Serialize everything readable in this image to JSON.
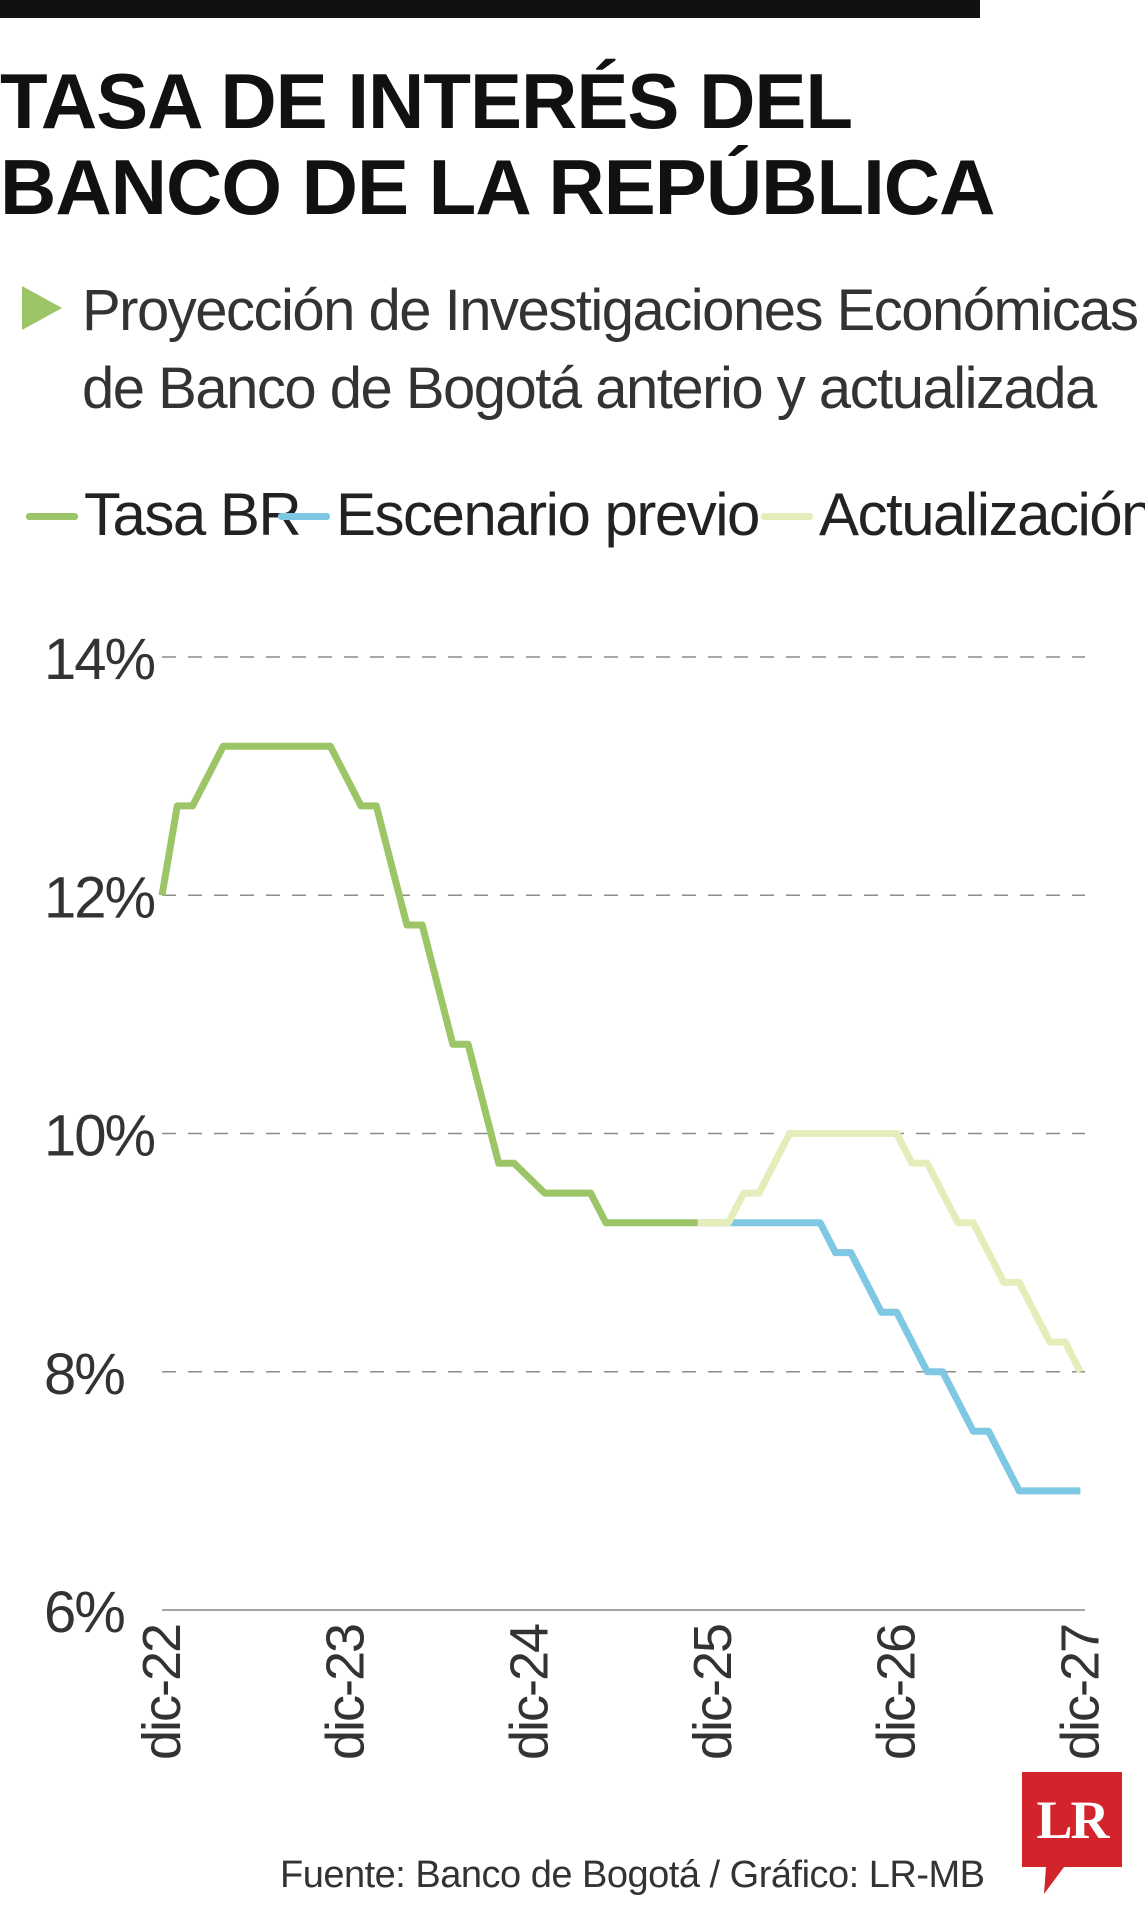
{
  "header": {
    "title_line1": "TASA DE INTERÉS DEL",
    "title_line2": "BANCO DE LA REPÚBLICA",
    "subtitle_line1": "Proyección de Investigaciones Económicas",
    "subtitle_line2": "de Banco de Bogotá anterio y actualizada"
  },
  "legend": [
    {
      "label": "Tasa BR",
      "color": "#9bc567"
    },
    {
      "label": "Escenario previo",
      "color": "#7ec8e3"
    },
    {
      "label": "Actualización",
      "color": "#e6edbb"
    }
  ],
  "chart_data": {
    "type": "line",
    "title": "TASA DE INTERÉS DEL BANCO DE LA REPÚBLICA",
    "subtitle": "Proyección de Investigaciones Económicas de Banco de Bogotá anterio y actualizada",
    "xlabel": "",
    "ylabel": "",
    "ylim": [
      6,
      14
    ],
    "yticks": [
      "6%",
      "8%",
      "10%",
      "12%",
      "14%"
    ],
    "ytick_values": [
      6,
      8,
      10,
      12,
      14
    ],
    "xlim": [
      0,
      60.3
    ],
    "xticks": [
      "dic-22",
      "dic-23",
      "dic-24",
      "dic-25",
      "dic-26",
      "dic-27"
    ],
    "xtick_values": [
      0,
      12,
      24,
      36,
      48,
      60
    ],
    "grid": "horizontal-dashed",
    "legend_position": "top",
    "series": [
      {
        "name": "Tasa BR",
        "color": "#9bc567",
        "points": [
          [
            0,
            12.0
          ],
          [
            1,
            12.75
          ],
          [
            2,
            12.75
          ],
          [
            4,
            13.25
          ],
          [
            5,
            13.25
          ],
          [
            6,
            13.25
          ],
          [
            7,
            13.25
          ],
          [
            8,
            13.25
          ],
          [
            9,
            13.25
          ],
          [
            10,
            13.25
          ],
          [
            11,
            13.25
          ],
          [
            13,
            12.75
          ],
          [
            14,
            12.75
          ],
          [
            16,
            11.75
          ],
          [
            17,
            11.75
          ],
          [
            19,
            10.75
          ],
          [
            20,
            10.75
          ],
          [
            22,
            9.75
          ],
          [
            23,
            9.75
          ],
          [
            25,
            9.5
          ],
          [
            28,
            9.5
          ],
          [
            29,
            9.25
          ],
          [
            35,
            9.25
          ]
        ]
      },
      {
        "name": "Escenario previo",
        "color": "#7ec8e3",
        "points": [
          [
            35,
            9.25
          ],
          [
            43,
            9.25
          ],
          [
            44,
            9.0
          ],
          [
            45,
            9.0
          ],
          [
            47,
            8.5
          ],
          [
            48,
            8.5
          ],
          [
            50,
            8.0
          ],
          [
            51,
            8.0
          ],
          [
            53,
            7.5
          ],
          [
            54,
            7.5
          ],
          [
            56,
            7.0
          ],
          [
            60,
            7.0
          ]
        ]
      },
      {
        "name": "Actualización",
        "color": "#e6edbb",
        "points": [
          [
            35,
            9.25
          ],
          [
            36,
            9.25
          ],
          [
            37,
            9.25
          ],
          [
            38,
            9.5
          ],
          [
            39,
            9.5
          ],
          [
            41,
            10.0
          ],
          [
            42,
            10.0
          ],
          [
            46,
            10.0
          ],
          [
            47,
            10.0
          ],
          [
            48,
            10.0
          ],
          [
            49,
            9.75
          ],
          [
            50,
            9.75
          ],
          [
            52,
            9.25
          ],
          [
            53,
            9.25
          ],
          [
            55,
            8.75
          ],
          [
            56,
            8.75
          ],
          [
            58,
            8.25
          ],
          [
            59,
            8.25
          ],
          [
            60,
            8.0
          ]
        ]
      }
    ]
  },
  "footer": {
    "source": "Fuente: Banco de Bogotá / Gráfico: LR-MB",
    "logo_text": "LR",
    "logo_color": "#d3242b"
  }
}
